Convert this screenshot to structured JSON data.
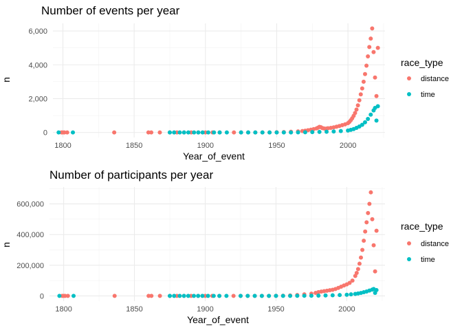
{
  "colors": {
    "distance": "#F8766D",
    "time": "#00BFC4"
  },
  "chart_data": [
    {
      "type": "scatter",
      "title": "Number of events per year",
      "xlabel": "Year_of_event",
      "ylabel": "n",
      "xlim": [
        1793,
        2026
      ],
      "ylim": [
        -300,
        6450
      ],
      "xticks": [
        1800,
        1850,
        1900,
        1950,
        2000
      ],
      "xtick_labels": [
        "1800",
        "1850",
        "1900",
        "1950",
        "2000"
      ],
      "yticks": [
        0,
        2000,
        4000,
        6000
      ],
      "ytick_labels": [
        "0",
        "2,000",
        "4,000",
        "6,000"
      ],
      "grid": true,
      "legend": {
        "title": "race_type",
        "position": "right",
        "entries": [
          "distance",
          "time"
        ]
      },
      "series": [
        {
          "name": "distance",
          "x": [
            1799,
            1800,
            1801,
            1803,
            1836,
            1860,
            1862,
            1868,
            1875,
            1880,
            1885,
            1890,
            1895,
            1900,
            1905,
            1910,
            1920,
            1925,
            1930,
            1935,
            1940,
            1945,
            1950,
            1955,
            1960,
            1965,
            1968,
            1970,
            1972,
            1974,
            1976,
            1978,
            1979,
            1980,
            1981,
            1982,
            1983,
            1984,
            1985,
            1986,
            1988,
            1990,
            1992,
            1994,
            1996,
            1998,
            2000,
            2001,
            2002,
            2003,
            2004,
            2005,
            2006,
            2007,
            2008,
            2009,
            2010,
            2011,
            2012,
            2013,
            2014,
            2015,
            2016,
            2017,
            2018,
            2019,
            2020,
            2021
          ],
          "y": [
            0,
            0,
            0,
            0,
            0,
            0,
            0,
            0,
            0,
            0,
            0,
            0,
            0,
            0,
            0,
            0,
            0,
            0,
            0,
            0,
            0,
            0,
            10,
            20,
            40,
            60,
            80,
            100,
            130,
            160,
            200,
            240,
            280,
            330,
            310,
            260,
            240,
            220,
            230,
            250,
            270,
            300,
            340,
            380,
            430,
            480,
            550,
            620,
            720,
            840,
            980,
            1150,
            1350,
            1600,
            1900,
            2250,
            2600,
            3000,
            3450,
            3950,
            4500,
            5050,
            5550,
            6150,
            4750,
            3250,
            2150,
            5000
          ]
        },
        {
          "name": "time",
          "x": [
            1797,
            1807,
            1875,
            1878,
            1882,
            1885,
            1888,
            1892,
            1895,
            1898,
            1902,
            1906,
            1910,
            1915,
            1925,
            1930,
            1935,
            1940,
            1945,
            1950,
            1955,
            1960,
            1965,
            1970,
            1975,
            1980,
            1985,
            1990,
            1995,
            2000,
            2002,
            2004,
            2006,
            2008,
            2010,
            2012,
            2014,
            2016,
            2018,
            2019,
            2020,
            2021
          ],
          "y": [
            0,
            0,
            0,
            0,
            0,
            0,
            0,
            0,
            0,
            0,
            0,
            0,
            0,
            0,
            0,
            0,
            0,
            0,
            0,
            0,
            0,
            0,
            5,
            10,
            20,
            30,
            40,
            55,
            80,
            110,
            150,
            200,
            270,
            350,
            450,
            600,
            800,
            1050,
            1300,
            1450,
            700,
            1550
          ]
        }
      ]
    },
    {
      "type": "scatter",
      "title": "Number of participants per year",
      "xlabel": "Year_of_event",
      "ylabel": "n",
      "xlim": [
        1790,
        2027
      ],
      "ylim": [
        -34000,
        710000
      ],
      "xticks": [
        1800,
        1850,
        1900,
        1950,
        2000
      ],
      "xtick_labels": [
        "1800",
        "1850",
        "1900",
        "1950",
        "2000"
      ],
      "yticks": [
        0,
        200000,
        400000,
        600000
      ],
      "ytick_labels": [
        "0",
        "200,000",
        "400,000",
        "600,000"
      ],
      "grid": true,
      "legend": {
        "title": "race_type",
        "position": "right",
        "entries": [
          "distance",
          "time"
        ]
      },
      "series": [
        {
          "name": "distance",
          "x": [
            1799,
            1800,
            1801,
            1803,
            1836,
            1860,
            1862,
            1868,
            1875,
            1880,
            1885,
            1890,
            1895,
            1900,
            1905,
            1910,
            1920,
            1925,
            1930,
            1935,
            1940,
            1945,
            1950,
            1955,
            1960,
            1965,
            1970,
            1975,
            1978,
            1980,
            1982,
            1984,
            1986,
            1988,
            1990,
            1992,
            1994,
            1996,
            1998,
            2000,
            2002,
            2004,
            2006,
            2007,
            2008,
            2009,
            2010,
            2011,
            2012,
            2013,
            2014,
            2015,
            2016,
            2017,
            2018,
            2019,
            2020,
            2021
          ],
          "y": [
            0,
            0,
            0,
            0,
            0,
            0,
            0,
            0,
            0,
            0,
            0,
            0,
            0,
            0,
            0,
            0,
            0,
            0,
            0,
            0,
            0,
            0,
            500,
            1500,
            3000,
            6000,
            10000,
            15000,
            20000,
            25000,
            28000,
            31000,
            34000,
            37000,
            40000,
            45000,
            52000,
            60000,
            68000,
            75000,
            85000,
            100000,
            130000,
            150000,
            175000,
            210000,
            250000,
            300000,
            360000,
            420000,
            480000,
            540000,
            600000,
            675000,
            500000,
            330000,
            160000,
            425000
          ]
        },
        {
          "name": "time",
          "x": [
            1797,
            1807,
            1875,
            1878,
            1882,
            1885,
            1888,
            1892,
            1895,
            1898,
            1902,
            1906,
            1910,
            1915,
            1925,
            1930,
            1935,
            1940,
            1945,
            1950,
            1955,
            1960,
            1965,
            1970,
            1975,
            1980,
            1985,
            1990,
            1995,
            2000,
            2003,
            2006,
            2008,
            2010,
            2012,
            2014,
            2016,
            2018,
            2019,
            2020,
            2021
          ],
          "y": [
            0,
            0,
            0,
            0,
            0,
            0,
            0,
            0,
            0,
            0,
            0,
            0,
            0,
            0,
            0,
            0,
            0,
            0,
            0,
            0,
            0,
            0,
            500,
            1000,
            1500,
            2000,
            3000,
            4000,
            5500,
            7500,
            10000,
            13000,
            16000,
            19500,
            24000,
            29000,
            35000,
            41000,
            45000,
            20000,
            38000
          ]
        }
      ]
    }
  ]
}
